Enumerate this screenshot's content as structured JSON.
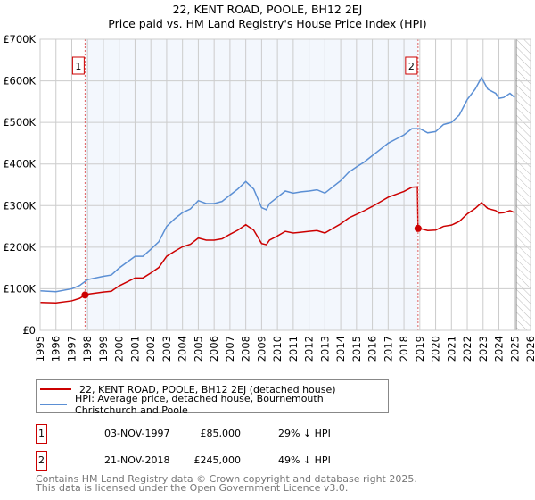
{
  "chart_data": {
    "type": "line",
    "title": "22, KENT ROAD, POOLE, BH12 2EJ",
    "subtitle": "Price paid vs. HM Land Registry's House Price Index (HPI)",
    "xlim": [
      1995,
      2026
    ],
    "ylim": [
      0,
      700000
    ],
    "x_ticks": [
      "1995",
      "1996",
      "1997",
      "1998",
      "1999",
      "2000",
      "2001",
      "2002",
      "2003",
      "2004",
      "2005",
      "2006",
      "2007",
      "2008",
      "2009",
      "2010",
      "2011",
      "2012",
      "2013",
      "2014",
      "2015",
      "2016",
      "2017",
      "2018",
      "2019",
      "2020",
      "2021",
      "2022",
      "2023",
      "2024",
      "2025",
      "2026"
    ],
    "y_ticks": [
      {
        "v": 0,
        "label": "£0"
      },
      {
        "v": 100000,
        "label": "£100K"
      },
      {
        "v": 200000,
        "label": "£200K"
      },
      {
        "v": 300000,
        "label": "£300K"
      },
      {
        "v": 400000,
        "label": "£400K"
      },
      {
        "v": 500000,
        "label": "£500K"
      },
      {
        "v": 600000,
        "label": "£600K"
      },
      {
        "v": 700000,
        "label": "£700K"
      }
    ],
    "grid": true,
    "shaded_period": [
      1997.84,
      2018.89
    ],
    "forecast_hatched_from": 2025.1,
    "series": [
      {
        "name": "22, KENT ROAD, POOLE, BH12 2EJ (detached house)",
        "color": "#cc0000",
        "x": [
          1995,
          1996,
          1997,
          1997.5,
          1997.84,
          1998,
          1999,
          1999.5,
          2000,
          2001,
          2001.5,
          2002,
          2002.5,
          2003,
          2003.5,
          2004,
          2004.5,
          2005,
          2005.5,
          2006,
          2006.5,
          2007,
          2007.5,
          2008,
          2008.5,
          2009,
          2009.3,
          2009.5,
          2010,
          2010.5,
          2011,
          2011.5,
          2012,
          2012.5,
          2013,
          2013.5,
          2014,
          2014.5,
          2015,
          2015.5,
          2016,
          2016.5,
          2017,
          2017.5,
          2018,
          2018.5,
          2018.85,
          2018.89,
          2019,
          2019.5,
          2020,
          2020.5,
          2021,
          2021.5,
          2022,
          2022.5,
          2022.9,
          2023.3,
          2023.8,
          2024,
          2024.3,
          2024.7,
          2025
        ],
        "y": [
          67,
          66,
          71,
          77,
          85,
          87,
          92,
          94,
          107,
          126,
          126,
          138,
          151,
          178,
          190,
          201,
          207,
          222,
          217,
          217,
          220,
          231,
          241,
          254,
          241,
          209,
          206,
          217,
          227,
          238,
          234,
          236,
          238,
          240,
          234,
          245,
          256,
          270,
          279,
          288,
          298,
          309,
          320,
          327,
          334,
          344,
          345,
          245,
          245,
          240,
          241,
          250,
          253,
          262,
          280,
          293,
          307,
          293,
          288,
          282,
          283,
          288,
          283
        ],
        "y_unit": "£K"
      },
      {
        "name": "HPI: Average price, detached house, Bournemouth Christchurch and Poole",
        "color": "#5b8fd4",
        "x": [
          1995,
          1996,
          1997,
          1997.5,
          1998,
          1999,
          1999.5,
          2000,
          2001,
          2001.5,
          2002,
          2002.5,
          2003,
          2003.5,
          2004,
          2004.5,
          2005,
          2005.5,
          2006,
          2006.5,
          2007,
          2007.5,
          2008,
          2008.5,
          2009,
          2009.3,
          2009.5,
          2010,
          2010.5,
          2011,
          2011.5,
          2012,
          2012.5,
          2013,
          2013.5,
          2014,
          2014.5,
          2015,
          2015.5,
          2016,
          2016.5,
          2017,
          2017.5,
          2018,
          2018.5,
          2019,
          2019.5,
          2020,
          2020.5,
          2021,
          2021.5,
          2022,
          2022.5,
          2022.9,
          2023.3,
          2023.8,
          2024,
          2024.3,
          2024.7,
          2025
        ],
        "y": [
          95,
          93,
          100,
          108,
          122,
          130,
          133,
          150,
          178,
          178,
          195,
          213,
          250,
          268,
          283,
          292,
          312,
          305,
          305,
          310,
          325,
          340,
          358,
          340,
          295,
          290,
          305,
          320,
          335,
          330,
          333,
          335,
          338,
          330,
          345,
          360,
          380,
          393,
          405,
          420,
          435,
          450,
          460,
          470,
          485,
          485,
          475,
          478,
          495,
          500,
          518,
          555,
          580,
          608,
          580,
          570,
          558,
          560,
          570,
          560
        ],
        "y_unit": "£K"
      }
    ],
    "sales": [
      {
        "id": "1",
        "x": 1997.84,
        "price": 85,
        "date": "03-NOV-1997",
        "price_label": "£85,000",
        "hpi_diff": "29% ↓ HPI"
      },
      {
        "id": "2",
        "x": 2018.89,
        "price": 245,
        "date": "21-NOV-2018",
        "price_label": "£245,000",
        "hpi_diff": "49% ↓ HPI"
      }
    ],
    "legend_position": "below"
  },
  "footer": {
    "line1": "Contains HM Land Registry data © Crown copyright and database right 2025.",
    "line2": "This data is licensed under the Open Government Licence v3.0."
  }
}
